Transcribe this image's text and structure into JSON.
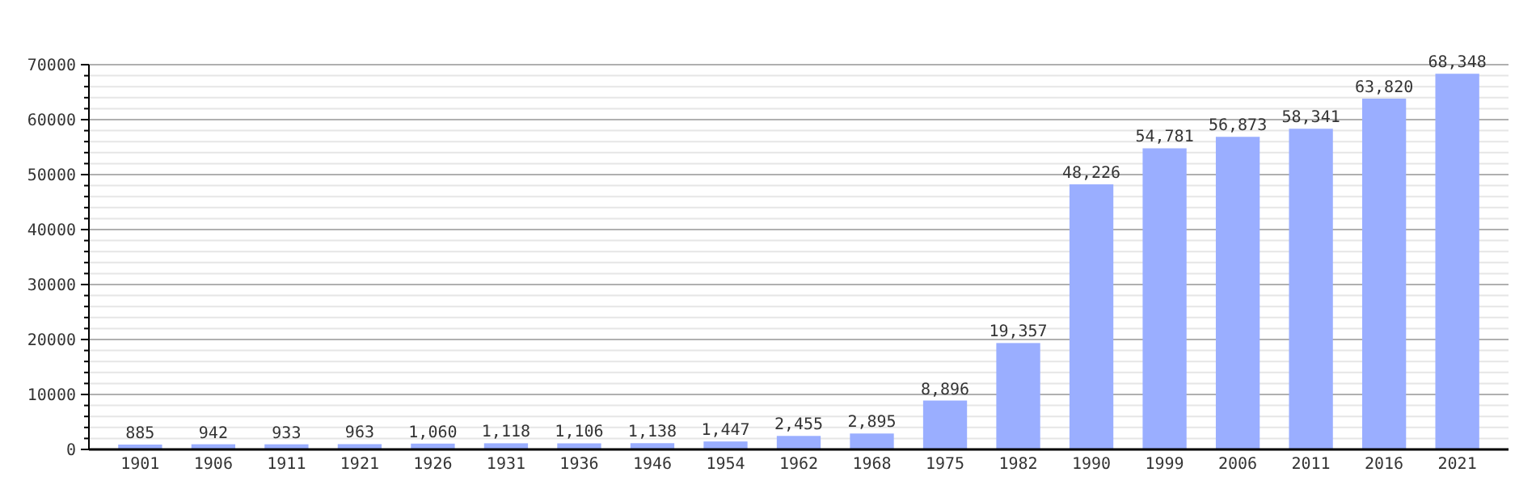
{
  "chart_data": {
    "type": "bar",
    "categories": [
      "1901",
      "1906",
      "1911",
      "1921",
      "1926",
      "1931",
      "1936",
      "1946",
      "1954",
      "1962",
      "1968",
      "1975",
      "1982",
      "1990",
      "1999",
      "2006",
      "2011",
      "2016",
      "2021"
    ],
    "values": [
      885,
      942,
      933,
      963,
      1060,
      1118,
      1106,
      1138,
      1447,
      2455,
      2895,
      8896,
      19357,
      48226,
      54781,
      56873,
      58341,
      63820,
      68348
    ],
    "value_labels": [
      "885",
      "942",
      "933",
      "963",
      "1,060",
      "1,118",
      "1,106",
      "1,138",
      "1,447",
      "2,455",
      "2,895",
      "8,896",
      "19,357",
      "48,226",
      "54,781",
      "56,873",
      "58,341",
      "63,820",
      "68,348"
    ],
    "color": "#9aaeff",
    "ylim": [
      0,
      70000
    ],
    "yticks": [
      0,
      {
        "value": 2000,
        "label": null
      },
      {
        "value": 4000,
        "label": null
      },
      {
        "value": 6000,
        "label": null
      },
      {
        "value": 8000,
        "label": null
      },
      10000,
      {
        "value": 12000,
        "label": null
      },
      {
        "value": 14000,
        "label": null
      },
      {
        "value": 16000,
        "label": null
      },
      {
        "value": 18000,
        "label": null
      },
      20000,
      {
        "value": 22000,
        "label": null
      },
      {
        "value": 24000,
        "label": null
      },
      {
        "value": 26000,
        "label": null
      },
      {
        "value": 28000,
        "label": null
      },
      30000,
      {
        "value": 32000,
        "label": null
      },
      {
        "value": 34000,
        "label": null
      },
      {
        "value": 36000,
        "label": null
      },
      {
        "value": 38000,
        "label": null
      },
      40000,
      {
        "value": 42000,
        "label": null
      },
      {
        "value": 44000,
        "label": null
      },
      {
        "value": 46000,
        "label": null
      },
      {
        "value": 48000,
        "label": null
      },
      50000,
      {
        "value": 52000,
        "label": null
      },
      {
        "value": 54000,
        "label": null
      },
      {
        "value": 56000,
        "label": null
      },
      {
        "value": 58000,
        "label": null
      },
      60000,
      {
        "value": 62000,
        "label": null
      },
      {
        "value": 64000,
        "label": null
      },
      {
        "value": 66000,
        "label": null
      },
      {
        "value": 68000,
        "label": null
      },
      70000
    ],
    "grid": true
  }
}
